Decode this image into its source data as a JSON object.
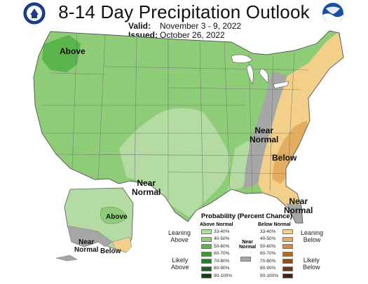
{
  "header": {
    "title": "8-14 Day Precipitation Outlook",
    "valid_label": "Valid:",
    "valid_value": "November 3 - 9, 2022",
    "issued_label": "Issued:",
    "issued_value": "October 26, 2022"
  },
  "logos": {
    "left": "doc-seal-icon",
    "right": "noaa-logo-icon"
  },
  "map": {
    "labels": {
      "above_nw": "Above",
      "near_normal_east_1": "Near",
      "near_normal_east_2": "Normal",
      "below_se": "Below",
      "near_normal_sw_1": "Near",
      "near_normal_sw_2": "Normal",
      "near_normal_fl_1": "Near",
      "near_normal_fl_2": "Normal",
      "ak_above": "Above",
      "ak_near_1": "Near",
      "ak_near_2": "Normal",
      "ak_below": "Below"
    }
  },
  "legend": {
    "title": "Probability (Percent Chance)",
    "above_header": "Above Normal",
    "near_header_1": "Near",
    "near_header_2": "Normal",
    "below_header": "Below Normal",
    "leaning_above_1": "Leaning",
    "leaning_above_2": "Above",
    "likely_above_1": "Likely",
    "likely_above_2": "Above",
    "leaning_below_1": "Leaning",
    "leaning_below_2": "Below",
    "likely_below_1": "Likely",
    "likely_below_2": "Below",
    "ranges": [
      "33-40%",
      "40-50%",
      "50-60%",
      "60-70%",
      "70-80%",
      "80-90%",
      "90-100%"
    ],
    "above_colors": [
      "#b3dba2",
      "#8fcc78",
      "#5bb54a",
      "#3b9a37",
      "#2a7b2e",
      "#1e5e26",
      "#123f18"
    ],
    "below_colors": [
      "#f3d08a",
      "#e4ad5f",
      "#d38b3c",
      "#b56a26",
      "#8f4e1c",
      "#6b3715",
      "#45220d"
    ],
    "near_color": "#a6a6a6"
  },
  "colors": {
    "above_33": "#b3dba2",
    "above_40": "#8fcc78",
    "above_50": "#5bb54a",
    "below_33": "#f3d08a",
    "below_40": "#e4ad5f",
    "near": "#a6a6a6",
    "border": "#6e6e6e"
  }
}
